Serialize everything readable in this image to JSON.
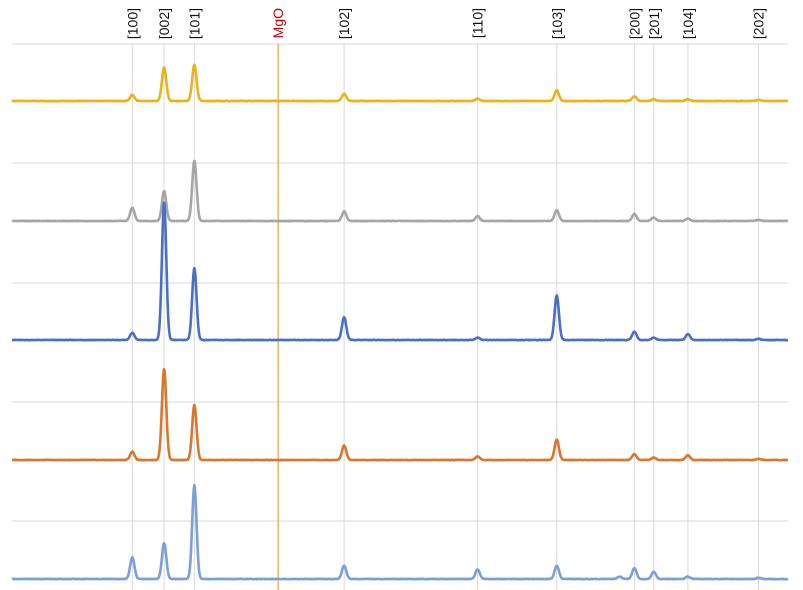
{
  "chart_data": {
    "type": "line",
    "title": "",
    "xlabel": "",
    "ylabel": "",
    "grid": true,
    "legend": "none",
    "xlim": [
      0,
      100
    ],
    "peak_labels": [
      {
        "label": "[100]",
        "x": 15.5
      },
      {
        "label": "[002]",
        "x": 19.6
      },
      {
        "label": "[101]",
        "x": 23.5
      },
      {
        "label": "[102]",
        "x": 42.8
      },
      {
        "label": "[110]",
        "x": 60.0
      },
      {
        "label": "[103]",
        "x": 70.2
      },
      {
        "label": "[200]",
        "x": 80.2
      },
      {
        "label": "[201]",
        "x": 82.7
      },
      {
        "label": "[104]",
        "x": 87.1
      },
      {
        "label": "[202]",
        "x": 96.2
      }
    ],
    "reference_line": {
      "label": "MgO",
      "x": 34.3,
      "color": "#c00000",
      "line_color": "#e6a243"
    },
    "series": [
      {
        "color": "#e8b41a",
        "peaks": [
          [
            15.5,
            0.05
          ],
          [
            19.6,
            0.28
          ],
          [
            23.5,
            0.3
          ],
          [
            42.8,
            0.06
          ],
          [
            60.0,
            0.02
          ],
          [
            70.2,
            0.09
          ],
          [
            80.2,
            0.04
          ],
          [
            82.7,
            0.015
          ],
          [
            87.1,
            0.015
          ],
          [
            96.2,
            0.01
          ]
        ]
      },
      {
        "color": "#a6a6a6",
        "peaks": [
          [
            15.5,
            0.11
          ],
          [
            19.6,
            0.25
          ],
          [
            23.5,
            0.5
          ],
          [
            42.8,
            0.08
          ],
          [
            60.0,
            0.04
          ],
          [
            70.2,
            0.09
          ],
          [
            80.2,
            0.06
          ],
          [
            82.7,
            0.03
          ],
          [
            87.1,
            0.02
          ],
          [
            96.2,
            0.01
          ]
        ]
      },
      {
        "color": "#4a6fc4",
        "peaks": [
          [
            15.5,
            0.06
          ],
          [
            19.6,
            1.15
          ],
          [
            23.5,
            0.6
          ],
          [
            42.8,
            0.19
          ],
          [
            60.0,
            0.02
          ],
          [
            70.2,
            0.37
          ],
          [
            80.2,
            0.07
          ],
          [
            82.7,
            0.02
          ],
          [
            87.1,
            0.05
          ],
          [
            96.2,
            0.01
          ]
        ]
      },
      {
        "color": "#d9772e",
        "peaks": [
          [
            15.5,
            0.07
          ],
          [
            19.6,
            0.76
          ],
          [
            23.5,
            0.46
          ],
          [
            42.8,
            0.12
          ],
          [
            60.0,
            0.03
          ],
          [
            70.2,
            0.17
          ],
          [
            80.2,
            0.05
          ],
          [
            82.7,
            0.02
          ],
          [
            87.1,
            0.04
          ],
          [
            96.2,
            0.01
          ]
        ]
      },
      {
        "color": "#7a9fda",
        "peaks": [
          [
            15.5,
            0.18
          ],
          [
            19.6,
            0.3
          ],
          [
            23.5,
            0.78
          ],
          [
            42.8,
            0.11
          ],
          [
            60.0,
            0.08
          ],
          [
            70.2,
            0.11
          ],
          [
            78.3,
            0.02
          ],
          [
            80.2,
            0.09
          ],
          [
            82.7,
            0.06
          ],
          [
            87.1,
            0.02
          ],
          [
            96.2,
            0.01
          ]
        ]
      }
    ]
  }
}
